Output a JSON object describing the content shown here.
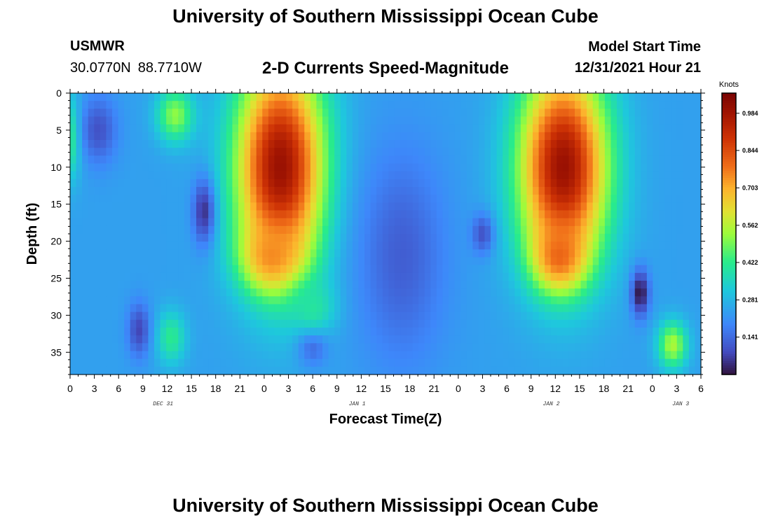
{
  "header": {
    "title": "University of Southern Mississippi Ocean Cube",
    "station": "USMWR",
    "lat": "30.0770N",
    "lon": "88.7710W",
    "subtitle": "2-D Currents Speed-Magnitude",
    "model_label": "Model Start Time",
    "model_value": "12/31/2021 Hour 21"
  },
  "footer": {
    "title": "University of Southern Mississippi Ocean Cube"
  },
  "chart_data": {
    "type": "heatmap",
    "title": "2-D Currents Speed-Magnitude",
    "xlabel": "Forecast Time(Z)",
    "ylabel": "Depth (ft)",
    "colorbar_unit": "Knots",
    "x_range_hours": [
      0,
      78
    ],
    "x_start": "Dec 31 00Z",
    "x_tick_labels": [
      "0",
      "3",
      "6",
      "9",
      "12",
      "15",
      "18",
      "21",
      "0",
      "3",
      "6",
      "9",
      "12",
      "15",
      "18",
      "21",
      "0",
      "3",
      "6",
      "9",
      "12",
      "15",
      "18",
      "21",
      "0",
      "3",
      "6"
    ],
    "date_labels": [
      {
        "label": "DEC 31",
        "hour": 11.5
      },
      {
        "label": "JAN 1",
        "hour": 35.5
      },
      {
        "label": "JAN 2",
        "hour": 59.5
      },
      {
        "label": "JAN 3",
        "hour": 75.5
      }
    ],
    "y_range_ft": [
      0,
      38
    ],
    "y_ticks": [
      0,
      5,
      10,
      15,
      20,
      25,
      30,
      35
    ],
    "y_tick_labels": [
      "0",
      "5",
      "10",
      "15",
      "20",
      "25",
      "30",
      "35"
    ],
    "colorbar_range": [
      0.0,
      1.06
    ],
    "colorbar_ticks": [
      0.141,
      0.281,
      0.422,
      0.562,
      0.703,
      0.844,
      0.984
    ],
    "colorbar_tick_labels": [
      "0.141",
      "0.281",
      "0.422",
      "0.562",
      "0.703",
      "0.844",
      "0.984"
    ],
    "background_speed_knots": 0.24,
    "features": [
      {
        "name": "peak-ebb-1",
        "hour": 26,
        "depth_ft": 10,
        "speed_knots": 1.0,
        "extent_hours": 6,
        "extent_ft": 16
      },
      {
        "name": "peak-ebb-1-lower",
        "hour": 25,
        "depth_ft": 22,
        "speed_knots": 0.75,
        "extent_hours": 4,
        "extent_ft": 5
      },
      {
        "name": "peak-ebb-2",
        "hour": 61,
        "depth_ft": 10,
        "speed_knots": 1.0,
        "extent_hours": 6,
        "extent_ft": 15
      },
      {
        "name": "peak-ebb-2-lower",
        "hour": 60.5,
        "depth_ft": 22,
        "speed_knots": 0.8,
        "extent_hours": 3.5,
        "extent_ft": 5
      },
      {
        "name": "surface-orange",
        "hour": 13,
        "depth_ft": 3,
        "speed_knots": 0.52,
        "extent_hours": 2.5,
        "extent_ft": 4
      },
      {
        "name": "surface-left",
        "hour": 0,
        "depth_ft": 6,
        "speed_knots": 0.45,
        "extent_hours": 1.5,
        "extent_ft": 6
      },
      {
        "name": "bottom-yellow-1",
        "hour": 12.5,
        "depth_ft": 33,
        "speed_knots": 0.42,
        "extent_hours": 2,
        "extent_ft": 4
      },
      {
        "name": "bottom-orange-2",
        "hour": 74.5,
        "depth_ft": 34,
        "speed_knots": 0.55,
        "extent_hours": 2,
        "extent_ft": 3.5
      },
      {
        "name": "min-slack-1",
        "hour": 16.5,
        "depth_ft": 16,
        "speed_knots": 0.05,
        "extent_hours": 1.5,
        "extent_ft": 5
      },
      {
        "name": "min-slack-2",
        "hour": 70.5,
        "depth_ft": 27,
        "speed_knots": 0.0,
        "extent_hours": 1.2,
        "extent_ft": 3.5
      },
      {
        "name": "low-mid-1",
        "hour": 41,
        "depth_ft": 22,
        "speed_knots": 0.12,
        "extent_hours": 6,
        "extent_ft": 16
      },
      {
        "name": "low-blue-2",
        "hour": 3.5,
        "depth_ft": 5,
        "speed_knots": 0.1,
        "extent_hours": 2.5,
        "extent_ft": 5
      },
      {
        "name": "low-blue-3",
        "hour": 8.5,
        "depth_ft": 32,
        "speed_knots": 0.08,
        "extent_hours": 1.5,
        "extent_ft": 4
      },
      {
        "name": "low-blue-4",
        "hour": 51,
        "depth_ft": 19,
        "speed_knots": 0.1,
        "extent_hours": 1.5,
        "extent_ft": 3
      },
      {
        "name": "low-blue-5",
        "hour": 30,
        "depth_ft": 34,
        "speed_knots": 0.12,
        "extent_hours": 2,
        "extent_ft": 3
      },
      {
        "name": "mid-yellow-band",
        "hour": 30,
        "depth_ft": 29,
        "speed_knots": 0.4,
        "extent_hours": 3,
        "extent_ft": 4
      }
    ]
  }
}
